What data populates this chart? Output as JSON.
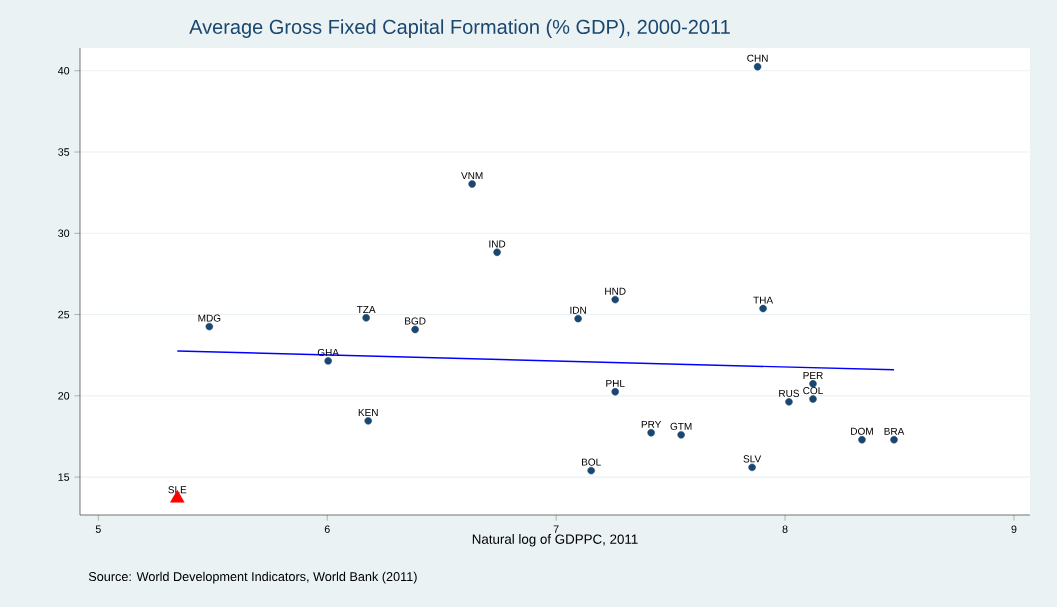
{
  "chart_data": {
    "type": "scatter",
    "title": "Average Gross Fixed Capital Formation (% GDP), 2000-2011",
    "xlabel": "Natural log of GDPPC, 2011",
    "xlim": [
      4.92,
      9.07
    ],
    "ylim": [
      12.67,
      41.4
    ],
    "xticks": [
      5,
      6,
      7,
      8,
      9
    ],
    "yticks": [
      15,
      20,
      25,
      30,
      35,
      40
    ],
    "grid": "y",
    "series": [
      {
        "type": "scatter",
        "marker": "circle",
        "color": "#1a476f",
        "x": [
          7.88,
          6.633,
          6.742,
          7.258,
          7.904,
          7.096,
          6.17,
          6.384,
          5.485,
          6.004,
          7.258,
          8.122,
          8.017,
          8.122,
          6.179,
          7.415,
          7.546,
          8.336,
          8.476,
          7.153,
          7.856
        ],
        "values": [
          40.25,
          33.03,
          28.83,
          25.92,
          25.37,
          24.75,
          24.8,
          24.08,
          24.26,
          22.15,
          20.25,
          20.74,
          19.63,
          19.8,
          18.46,
          17.73,
          17.6,
          17.3,
          17.3,
          15.4,
          15.6
        ]
      },
      {
        "type": "scatter",
        "marker": "triangle",
        "color": "#ff0000",
        "x": [
          5.345
        ],
        "values": [
          13.7
        ]
      },
      {
        "type": "line",
        "marker": "none",
        "color": "#0000ff",
        "x": [
          5.345,
          8.476
        ],
        "values": [
          22.76,
          21.6
        ]
      }
    ],
    "annotations": [
      {
        "text": "CHN",
        "x": 7.88,
        "y": 40.25
      },
      {
        "text": "VNM",
        "x": 6.633,
        "y": 33.03
      },
      {
        "text": "IND",
        "x": 6.742,
        "y": 28.83
      },
      {
        "text": "HND",
        "x": 7.258,
        "y": 25.92
      },
      {
        "text": "THA",
        "x": 7.904,
        "y": 25.37
      },
      {
        "text": "IDN",
        "x": 7.096,
        "y": 24.75
      },
      {
        "text": "TZA",
        "x": 6.17,
        "y": 24.8
      },
      {
        "text": "BGD",
        "x": 6.384,
        "y": 24.08
      },
      {
        "text": "MDG",
        "x": 5.485,
        "y": 24.26
      },
      {
        "text": "GHA",
        "x": 6.004,
        "y": 22.15
      },
      {
        "text": "PHL",
        "x": 7.258,
        "y": 20.25
      },
      {
        "text": "PER",
        "x": 8.122,
        "y": 20.74
      },
      {
        "text": "RUS",
        "x": 8.017,
        "y": 19.63
      },
      {
        "text": "COL",
        "x": 8.122,
        "y": 19.8
      },
      {
        "text": "KEN",
        "x": 6.179,
        "y": 18.46
      },
      {
        "text": "PRY",
        "x": 7.415,
        "y": 17.73
      },
      {
        "text": "GTM",
        "x": 7.546,
        "y": 17.6
      },
      {
        "text": "DOM",
        "x": 8.336,
        "y": 17.3
      },
      {
        "text": "BRA",
        "x": 8.476,
        "y": 17.3
      },
      {
        "text": "BOL",
        "x": 7.153,
        "y": 15.4
      },
      {
        "text": "SLV",
        "x": 7.856,
        "y": 15.6
      },
      {
        "text": "SLE",
        "x": 5.345,
        "y": 13.7
      },
      "Source: World Development Indicators, World Bank (2011)"
    ]
  }
}
